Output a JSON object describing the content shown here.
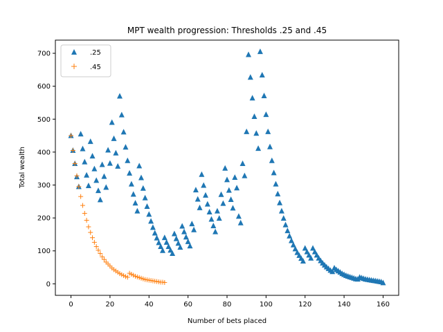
{
  "chart_data": {
    "type": "scatter",
    "title": "MPT wealth progression: Thresholds .25 and .45",
    "xlabel": "Number of bets placed",
    "ylabel": "Total wealth",
    "xlim": [
      -8,
      168
    ],
    "ylim": [
      -35,
      740
    ],
    "xticks": [
      0,
      20,
      40,
      60,
      80,
      100,
      120,
      140,
      160
    ],
    "yticks": [
      0,
      100,
      200,
      300,
      400,
      500,
      600,
      700
    ],
    "grid": false,
    "legend_position": "top-left",
    "series": [
      {
        "name": ".25",
        "marker": "triangle",
        "color": "#1f77b4",
        "points": [
          [
            0,
            450
          ],
          [
            1,
            405
          ],
          [
            2,
            365
          ],
          [
            3,
            325
          ],
          [
            4,
            295
          ],
          [
            5,
            455
          ],
          [
            6,
            410
          ],
          [
            7,
            370
          ],
          [
            8,
            330
          ],
          [
            9,
            298
          ],
          [
            10,
            432
          ],
          [
            11,
            388
          ],
          [
            12,
            349
          ],
          [
            13,
            314
          ],
          [
            14,
            283
          ],
          [
            15,
            255
          ],
          [
            16,
            362
          ],
          [
            17,
            326
          ],
          [
            18,
            293
          ],
          [
            19,
            406
          ],
          [
            20,
            366
          ],
          [
            21,
            490
          ],
          [
            22,
            441
          ],
          [
            23,
            397
          ],
          [
            24,
            357
          ],
          [
            25,
            570
          ],
          [
            26,
            513
          ],
          [
            27,
            461
          ],
          [
            28,
            415
          ],
          [
            29,
            374
          ],
          [
            30,
            336
          ],
          [
            31,
            303
          ],
          [
            32,
            272
          ],
          [
            33,
            245
          ],
          [
            34,
            221
          ],
          [
            35,
            358
          ],
          [
            36,
            322
          ],
          [
            37,
            290
          ],
          [
            38,
            261
          ],
          [
            39,
            235
          ],
          [
            40,
            211
          ],
          [
            41,
            190
          ],
          [
            42,
            171
          ],
          [
            43,
            154
          ],
          [
            44,
            139
          ],
          [
            45,
            125
          ],
          [
            46,
            113
          ],
          [
            47,
            101
          ],
          [
            48,
            140
          ],
          [
            49,
            126
          ],
          [
            50,
            113
          ],
          [
            51,
            102
          ],
          [
            52,
            92
          ],
          [
            53,
            152
          ],
          [
            54,
            137
          ],
          [
            55,
            123
          ],
          [
            56,
            111
          ],
          [
            57,
            175
          ],
          [
            58,
            158
          ],
          [
            59,
            142
          ],
          [
            60,
            128
          ],
          [
            61,
            115
          ],
          [
            62,
            182
          ],
          [
            63,
            164
          ],
          [
            64,
            285
          ],
          [
            65,
            257
          ],
          [
            66,
            231
          ],
          [
            67,
            332
          ],
          [
            68,
            299
          ],
          [
            69,
            269
          ],
          [
            70,
            242
          ],
          [
            71,
            218
          ],
          [
            72,
            196
          ],
          [
            73,
            176
          ],
          [
            74,
            158
          ],
          [
            75,
            221
          ],
          [
            76,
            199
          ],
          [
            77,
            271
          ],
          [
            78,
            244
          ],
          [
            79,
            351
          ],
          [
            80,
            316
          ],
          [
            81,
            284
          ],
          [
            82,
            256
          ],
          [
            83,
            230
          ],
          [
            84,
            323
          ],
          [
            85,
            291
          ],
          [
            86,
            205
          ],
          [
            87,
            185
          ],
          [
            88,
            365
          ],
          [
            89,
            328
          ],
          [
            90,
            462
          ],
          [
            91,
            696
          ],
          [
            92,
            627
          ],
          [
            93,
            564
          ],
          [
            94,
            508
          ],
          [
            95,
            457
          ],
          [
            96,
            411
          ],
          [
            97,
            705
          ],
          [
            98,
            634
          ],
          [
            99,
            571
          ],
          [
            100,
            514
          ],
          [
            101,
            462
          ],
          [
            102,
            416
          ],
          [
            103,
            374
          ],
          [
            104,
            337
          ],
          [
            105,
            303
          ],
          [
            106,
            273
          ],
          [
            107,
            246
          ],
          [
            108,
            221
          ],
          [
            109,
            199
          ],
          [
            110,
            179
          ],
          [
            111,
            161
          ],
          [
            112,
            145
          ],
          [
            113,
            131
          ],
          [
            114,
            118
          ],
          [
            115,
            106
          ],
          [
            116,
            95
          ],
          [
            117,
            86
          ],
          [
            118,
            77
          ],
          [
            119,
            69
          ],
          [
            120,
            108
          ],
          [
            121,
            97
          ],
          [
            122,
            87
          ],
          [
            123,
            78
          ],
          [
            124,
            108
          ],
          [
            125,
            97
          ],
          [
            126,
            87
          ],
          [
            127,
            78
          ],
          [
            128,
            70
          ],
          [
            129,
            63
          ],
          [
            130,
            57
          ],
          [
            131,
            51
          ],
          [
            132,
            46
          ],
          [
            133,
            41
          ],
          [
            134,
            37
          ],
          [
            135,
            48
          ],
          [
            136,
            43
          ],
          [
            137,
            39
          ],
          [
            138,
            35
          ],
          [
            139,
            31
          ],
          [
            140,
            28
          ],
          [
            141,
            25
          ],
          [
            142,
            23
          ],
          [
            143,
            21
          ],
          [
            144,
            19
          ],
          [
            145,
            17
          ],
          [
            146,
            15
          ],
          [
            147,
            14
          ],
          [
            148,
            20
          ],
          [
            149,
            18
          ],
          [
            150,
            16
          ],
          [
            151,
            14
          ],
          [
            152,
            13
          ],
          [
            153,
            12
          ],
          [
            154,
            11
          ],
          [
            155,
            10
          ],
          [
            156,
            9
          ],
          [
            157,
            8
          ],
          [
            158,
            7
          ],
          [
            159,
            6
          ],
          [
            160,
            3
          ]
        ]
      },
      {
        "name": ".45",
        "marker": "plus",
        "color": "#ff7f0e",
        "points": [
          [
            0,
            450
          ],
          [
            1,
            405
          ],
          [
            2,
            365
          ],
          [
            3,
            328
          ],
          [
            4,
            295
          ],
          [
            5,
            265
          ],
          [
            6,
            238
          ],
          [
            7,
            214
          ],
          [
            8,
            193
          ],
          [
            9,
            173
          ],
          [
            10,
            156
          ],
          [
            11,
            140
          ],
          [
            12,
            126
          ],
          [
            13,
            113
          ],
          [
            14,
            102
          ],
          [
            15,
            92
          ],
          [
            16,
            82
          ],
          [
            17,
            74
          ],
          [
            18,
            66
          ],
          [
            19,
            60
          ],
          [
            20,
            54
          ],
          [
            21,
            48
          ],
          [
            22,
            43
          ],
          [
            23,
            39
          ],
          [
            24,
            35
          ],
          [
            25,
            31
          ],
          [
            26,
            28
          ],
          [
            27,
            25
          ],
          [
            28,
            22
          ],
          [
            29,
            20
          ],
          [
            30,
            32
          ],
          [
            31,
            29
          ],
          [
            32,
            26
          ],
          [
            33,
            23
          ],
          [
            34,
            21
          ],
          [
            35,
            19
          ],
          [
            36,
            17
          ],
          [
            37,
            15
          ],
          [
            38,
            13
          ],
          [
            39,
            12
          ],
          [
            40,
            11
          ],
          [
            41,
            10
          ],
          [
            42,
            9
          ],
          [
            43,
            8
          ],
          [
            44,
            7
          ],
          [
            45,
            6
          ],
          [
            46,
            5
          ],
          [
            47,
            5
          ],
          [
            48,
            4
          ]
        ]
      }
    ]
  }
}
